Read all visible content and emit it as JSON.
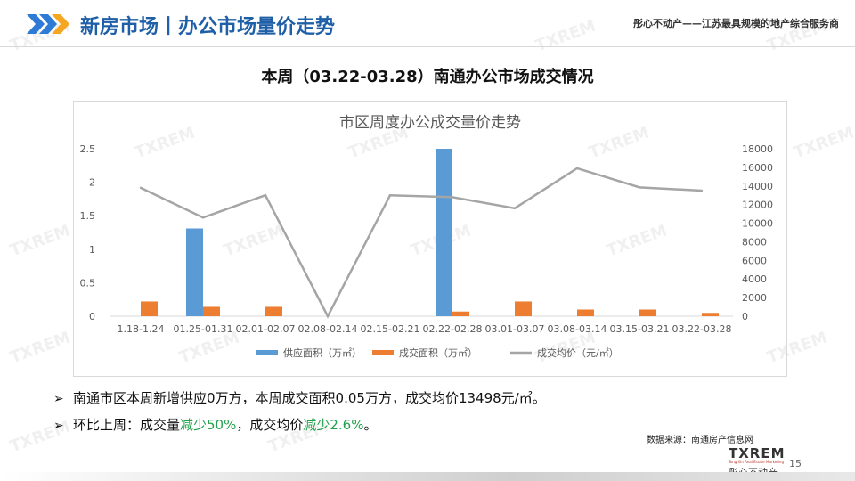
{
  "header": {
    "title": "新房市场丨办公市场量价走势",
    "slogan": "彤心不动产——江苏最具规模的地产综合服务商",
    "logo_text": "TXREM"
  },
  "subtitle": "本周（03.22-03.28）南通办公市场成交情况",
  "chart_data": {
    "type": "bar",
    "title": "市区周度办公成交量价走势",
    "categories": [
      "1.18-1.24",
      "01.25-01.31",
      "02.01-02.07",
      "02.08-02.14",
      "02.15-02.21",
      "02.22-02.28",
      "03.01-03.07",
      "03.08-03.14",
      "03.15-03.21",
      "03.22-03.28"
    ],
    "series": [
      {
        "name": "供应面积（万㎡）",
        "type": "bar",
        "axis": "left",
        "color": "#5b9bd5",
        "values": [
          0,
          1.31,
          0,
          0,
          0,
          2.5,
          0,
          0,
          0,
          0
        ]
      },
      {
        "name": "成交面积（万㎡）",
        "type": "bar",
        "axis": "left",
        "color": "#ed7d31",
        "values": [
          0.22,
          0.14,
          0.14,
          0,
          0,
          0.07,
          0.22,
          0.1,
          0.1,
          0.05
        ]
      },
      {
        "name": "成交均价（元/㎡）",
        "type": "line",
        "axis": "right",
        "color": "#a5a5a5",
        "values": [
          13800,
          10600,
          13000,
          0,
          13000,
          12800,
          11600,
          15900,
          13850,
          13498
        ]
      }
    ],
    "y_left": {
      "min": 0,
      "max": 2.5,
      "ticks": [
        "0",
        "0.5",
        "1",
        "1.5",
        "2",
        "2.5"
      ]
    },
    "y_right": {
      "min": 0,
      "max": 18000,
      "ticks": [
        "0",
        "2000",
        "4000",
        "6000",
        "8000",
        "10000",
        "12000",
        "14000",
        "16000",
        "18000"
      ]
    },
    "legend_position": "bottom",
    "grid": false
  },
  "bullets": {
    "line1": "南通市区本周新增供应0万方，本周成交面积0.05万方，成交均价13498元/㎡。",
    "line2_pre": "环比上周：成交量",
    "line2_g1": "减少50%",
    "line2_mid": "，成交均价",
    "line2_g2": "减少2.6%",
    "line2_post": "。",
    "arrow": "➢"
  },
  "source": "数据来源：南通房产信息网",
  "footer": {
    "logo_big": "TXREM",
    "logo_tiny": "Tong Xin Real Estate Marketing",
    "logo_cn": "彤心不动产",
    "page": "15"
  },
  "colors": {
    "title_blue": "#1f5fa8",
    "accent_orange": "#f5a623",
    "green": "#22a04b"
  }
}
